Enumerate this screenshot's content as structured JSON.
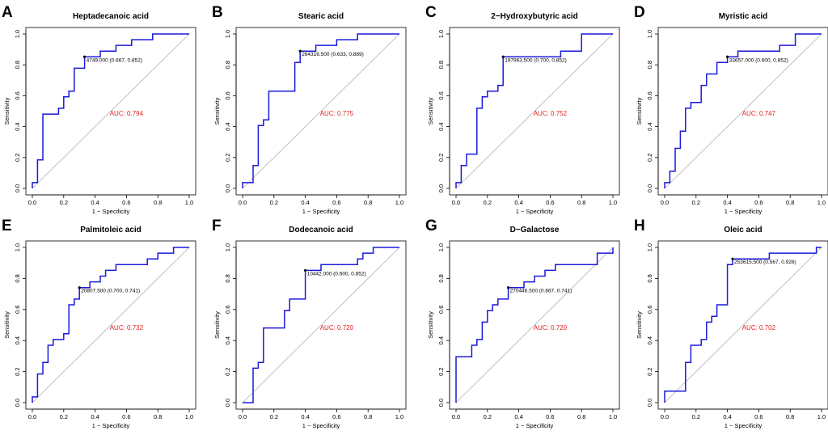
{
  "figure": {
    "colors": {
      "roc_curve": "#1a1adc",
      "auc_text": "#e02020",
      "diagonal": "#b0b0b0"
    }
  },
  "chart_data": [
    {
      "type": "line",
      "panel": "A",
      "title": "Heptadecanoic acid",
      "xlabel": "1 − Specificity",
      "ylabel": "Sensitivity",
      "xlim": [
        0,
        1
      ],
      "ylim": [
        0,
        1
      ],
      "xticks": [
        "0.0",
        "0.2",
        "0.4",
        "0.6",
        "0.8",
        "1.0"
      ],
      "yticks": [
        "0.0",
        "0.2",
        "0.4",
        "0.6",
        "0.8",
        "1.0"
      ],
      "auc_label": "AUC: 0.794",
      "threshold_label": "4749.000 (0.667, 0.852)",
      "threshold_point": [
        0.333,
        0.852
      ],
      "series": [
        {
          "name": "ROC",
          "x": [
            0,
            0,
            0.033,
            0.033,
            0.067,
            0.067,
            0.167,
            0.167,
            0.2,
            0.2,
            0.233,
            0.233,
            0.267,
            0.267,
            0.333,
            0.333,
            0.433,
            0.433,
            0.533,
            0.533,
            0.633,
            0.633,
            0.767,
            0.767,
            1.0
          ],
          "y": [
            0,
            0.037,
            0.037,
            0.185,
            0.185,
            0.481,
            0.481,
            0.519,
            0.519,
            0.593,
            0.593,
            0.63,
            0.63,
            0.778,
            0.778,
            0.852,
            0.852,
            0.889,
            0.889,
            0.926,
            0.926,
            0.963,
            0.963,
            1.0,
            1.0
          ]
        }
      ]
    },
    {
      "type": "line",
      "panel": "B",
      "title": "Stearic acid",
      "xlabel": "1 − Specificity",
      "ylabel": "Sensitivity",
      "xlim": [
        0,
        1
      ],
      "ylim": [
        0,
        1
      ],
      "xticks": [
        "0.0",
        "0.2",
        "0.4",
        "0.6",
        "0.8",
        "1.0"
      ],
      "yticks": [
        "0.0",
        "0.2",
        "0.4",
        "0.6",
        "0.8",
        "1.0"
      ],
      "auc_label": "AUC: 0.775",
      "threshold_label": "264316.500 (0.633, 0.889)",
      "threshold_point": [
        0.367,
        0.889
      ],
      "series": [
        {
          "name": "ROC",
          "x": [
            0,
            0,
            0.067,
            0.067,
            0.1,
            0.1,
            0.133,
            0.133,
            0.167,
            0.167,
            0.333,
            0.333,
            0.367,
            0.367,
            0.467,
            0.467,
            0.6,
            0.6,
            0.733,
            0.733,
            1.0
          ],
          "y": [
            0,
            0.037,
            0.037,
            0.148,
            0.148,
            0.407,
            0.407,
            0.444,
            0.444,
            0.63,
            0.63,
            0.815,
            0.815,
            0.889,
            0.889,
            0.926,
            0.926,
            0.963,
            0.963,
            1.0,
            1.0
          ]
        }
      ]
    },
    {
      "type": "line",
      "panel": "C",
      "title": "2−Hydroxybutyric acid",
      "xlabel": "1 − Specificity",
      "ylabel": "Sensitivity",
      "xlim": [
        0,
        1
      ],
      "ylim": [
        0,
        1
      ],
      "xticks": [
        "0.0",
        "0.2",
        "0.4",
        "0.6",
        "0.8",
        "1.0"
      ],
      "yticks": [
        "0.0",
        "0.2",
        "0.4",
        "0.6",
        "0.8",
        "1.0"
      ],
      "auc_label": "AUC: 0.752",
      "threshold_label": "197963.500 (0.700, 0.852)",
      "threshold_point": [
        0.3,
        0.852
      ],
      "series": [
        {
          "name": "ROC",
          "x": [
            0,
            0,
            0.033,
            0.033,
            0.067,
            0.067,
            0.133,
            0.133,
            0.167,
            0.167,
            0.2,
            0.2,
            0.233,
            0.233,
            0.267,
            0.267,
            0.3,
            0.3,
            0.667,
            0.667,
            0.8,
            0.8,
            1.0
          ],
          "y": [
            0,
            0.037,
            0.037,
            0.148,
            0.148,
            0.222,
            0.222,
            0.519,
            0.519,
            0.593,
            0.593,
            0.63,
            0.63,
            0.63,
            0.63,
            0.667,
            0.667,
            0.852,
            0.852,
            0.889,
            0.889,
            1.0,
            1.0
          ]
        }
      ]
    },
    {
      "type": "line",
      "panel": "D",
      "title": "Myristic acid",
      "xlabel": "1 − Specificity",
      "ylabel": "Sensitivity",
      "xlim": [
        0,
        1
      ],
      "ylim": [
        0,
        1
      ],
      "xticks": [
        "0.0",
        "0.2",
        "0.4",
        "0.6",
        "0.8",
        "1.0"
      ],
      "yticks": [
        "0.0",
        "0.2",
        "0.4",
        "0.6",
        "0.8",
        "1.0"
      ],
      "auc_label": "AUC: 0.747",
      "threshold_label": "33657.000 (0.600, 0.852)",
      "threshold_point": [
        0.4,
        0.852
      ],
      "series": [
        {
          "name": "ROC",
          "x": [
            0,
            0,
            0.033,
            0.033,
            0.067,
            0.067,
            0.1,
            0.1,
            0.133,
            0.133,
            0.167,
            0.167,
            0.233,
            0.233,
            0.267,
            0.267,
            0.3,
            0.3,
            0.333,
            0.333,
            0.367,
            0.367,
            0.4,
            0.4,
            0.467,
            0.467,
            0.733,
            0.733,
            0.833,
            0.833,
            1.0
          ],
          "y": [
            0,
            0.037,
            0.037,
            0.111,
            0.111,
            0.259,
            0.259,
            0.37,
            0.37,
            0.519,
            0.519,
            0.556,
            0.556,
            0.667,
            0.667,
            0.741,
            0.741,
            0.741,
            0.741,
            0.815,
            0.815,
            0.815,
            0.815,
            0.852,
            0.852,
            0.889,
            0.889,
            0.926,
            0.926,
            1.0,
            1.0
          ]
        }
      ]
    },
    {
      "type": "line",
      "panel": "E",
      "title": "Palmitoleic acid",
      "xlabel": "1 − Specificity",
      "ylabel": "Sensitivity",
      "xlim": [
        0,
        1
      ],
      "ylim": [
        0,
        1
      ],
      "xticks": [
        "0.0",
        "0.2",
        "0.4",
        "0.6",
        "0.8",
        "1.0"
      ],
      "yticks": [
        "0.0",
        "0.2",
        "0.4",
        "0.6",
        "0.8",
        "1.0"
      ],
      "auc_label": "AUC: 0.732",
      "threshold_label": "20807.500 (0.700, 0.741)",
      "threshold_point": [
        0.3,
        0.741
      ],
      "series": [
        {
          "name": "ROC",
          "x": [
            0,
            0,
            0.033,
            0.033,
            0.067,
            0.067,
            0.1,
            0.1,
            0.133,
            0.133,
            0.2,
            0.2,
            0.233,
            0.233,
            0.267,
            0.267,
            0.3,
            0.3,
            0.367,
            0.367,
            0.433,
            0.433,
            0.467,
            0.467,
            0.533,
            0.533,
            0.733,
            0.733,
            0.8,
            0.8,
            0.9,
            0.9,
            1.0
          ],
          "y": [
            0,
            0.037,
            0.037,
            0.185,
            0.185,
            0.259,
            0.259,
            0.37,
            0.37,
            0.407,
            0.407,
            0.444,
            0.444,
            0.63,
            0.63,
            0.667,
            0.667,
            0.741,
            0.741,
            0.778,
            0.778,
            0.815,
            0.815,
            0.852,
            0.852,
            0.889,
            0.889,
            0.926,
            0.926,
            0.963,
            0.963,
            1.0,
            1.0
          ]
        }
      ]
    },
    {
      "type": "line",
      "panel": "F",
      "title": "Dodecanoic acid",
      "xlabel": "1 − Specificity",
      "ylabel": "Sensitivity",
      "xlim": [
        0,
        1
      ],
      "ylim": [
        0,
        1
      ],
      "xticks": [
        "0.0",
        "0.2",
        "0.4",
        "0.6",
        "0.8",
        "1.0"
      ],
      "yticks": [
        "0.0",
        "0.2",
        "0.4",
        "0.6",
        "0.8",
        "1.0"
      ],
      "auc_label": "AUC: 0.720",
      "threshold_label": "10442.000 (0.600, 0.852)",
      "threshold_point": [
        0.4,
        0.852
      ],
      "series": [
        {
          "name": "ROC",
          "x": [
            0,
            0.067,
            0.067,
            0.1,
            0.1,
            0.133,
            0.133,
            0.267,
            0.267,
            0.3,
            0.3,
            0.4,
            0.4,
            0.5,
            0.5,
            0.733,
            0.733,
            0.767,
            0.767,
            0.8,
            0.8,
            0.833,
            0.833,
            1.0
          ],
          "y": [
            0,
            0,
            0.222,
            0.222,
            0.259,
            0.259,
            0.481,
            0.481,
            0.593,
            0.593,
            0.667,
            0.667,
            0.852,
            0.852,
            0.889,
            0.889,
            0.926,
            0.926,
            0.963,
            0.963,
            0.963,
            0.963,
            1.0,
            1.0
          ]
        }
      ]
    },
    {
      "type": "line",
      "panel": "G",
      "title": "D−Galactose",
      "xlabel": "1 − Specificity",
      "ylabel": "Sensitivity",
      "xlim": [
        0,
        1
      ],
      "ylim": [
        0,
        1
      ],
      "xticks": [
        "0.0",
        "0.2",
        "0.4",
        "0.6",
        "0.8",
        "1.0"
      ],
      "yticks": [
        "0.0",
        "0.2",
        "0.4",
        "0.6",
        "0.8",
        "1.0"
      ],
      "auc_label": "AUC: 0.720",
      "threshold_label": "270446.500 (0.667, 0.741)",
      "threshold_point": [
        0.333,
        0.741
      ],
      "series": [
        {
          "name": "ROC",
          "x": [
            0,
            0,
            0.1,
            0.1,
            0.133,
            0.133,
            0.167,
            0.167,
            0.2,
            0.2,
            0.233,
            0.233,
            0.267,
            0.267,
            0.333,
            0.333,
            0.433,
            0.433,
            0.5,
            0.5,
            0.567,
            0.567,
            0.633,
            0.633,
            0.9,
            0.9,
            1.0,
            1.0
          ],
          "y": [
            0,
            0.296,
            0.296,
            0.37,
            0.37,
            0.407,
            0.407,
            0.519,
            0.519,
            0.593,
            0.593,
            0.63,
            0.63,
            0.667,
            0.667,
            0.741,
            0.741,
            0.778,
            0.778,
            0.815,
            0.815,
            0.852,
            0.852,
            0.889,
            0.889,
            0.963,
            0.963,
            1.0
          ]
        }
      ]
    },
    {
      "type": "line",
      "panel": "H",
      "title": "Oleic acid",
      "xlabel": "1 − Specificity",
      "ylabel": "Sensitivity",
      "xlim": [
        0,
        1
      ],
      "ylim": [
        0,
        1
      ],
      "xticks": [
        "0.0",
        "0.2",
        "0.4",
        "0.6",
        "0.8",
        "1.0"
      ],
      "yticks": [
        "0.0",
        "0.2",
        "0.4",
        "0.6",
        "0.8",
        "1.0"
      ],
      "auc_label": "AUC: 0.702",
      "threshold_label": "253615.500 (0.567, 0.926)",
      "threshold_point": [
        0.433,
        0.926
      ],
      "series": [
        {
          "name": "ROC",
          "x": [
            0,
            0,
            0.133,
            0.133,
            0.167,
            0.167,
            0.233,
            0.233,
            0.267,
            0.267,
            0.3,
            0.3,
            0.333,
            0.333,
            0.367,
            0.367,
            0.4,
            0.4,
            0.433,
            0.433,
            0.667,
            0.667,
            0.967,
            0.967,
            1.0
          ],
          "y": [
            0,
            0.074,
            0.074,
            0.259,
            0.259,
            0.37,
            0.37,
            0.407,
            0.407,
            0.519,
            0.519,
            0.556,
            0.556,
            0.63,
            0.63,
            0.63,
            0.63,
            0.889,
            0.889,
            0.926,
            0.926,
            0.963,
            0.963,
            1.0,
            1.0
          ]
        }
      ]
    }
  ]
}
